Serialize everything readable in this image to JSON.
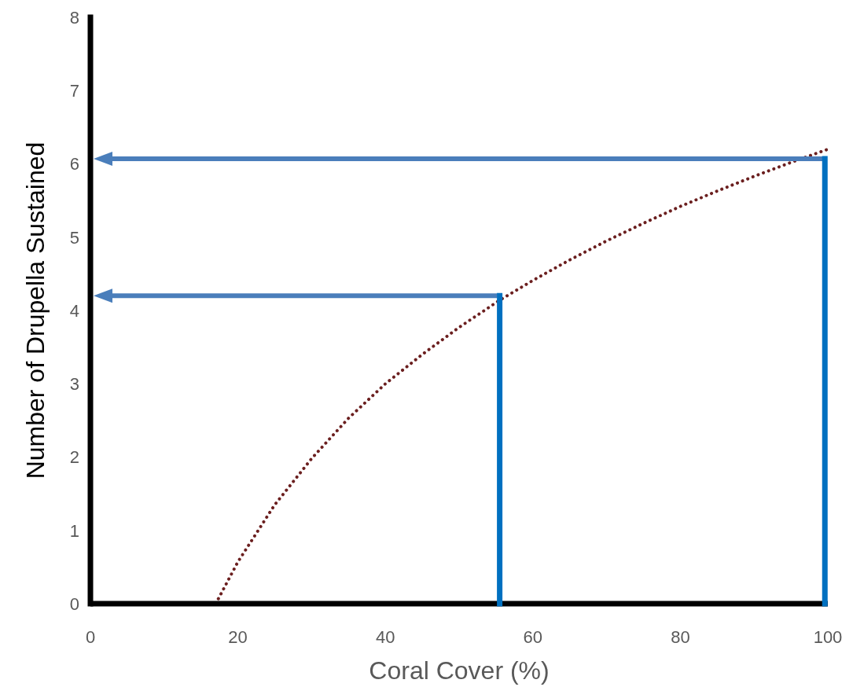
{
  "chart_data": {
    "type": "line",
    "xlabel": "Coral Cover (%)",
    "ylabel": "Number of Drupella Sustained",
    "xlim": [
      0,
      100
    ],
    "xticks": [
      0,
      20,
      40,
      60,
      80,
      100
    ],
    "ylim": [
      0,
      8
    ],
    "yticks": [
      0,
      1,
      2,
      3,
      4,
      5,
      6,
      7,
      8
    ],
    "grid": false,
    "marker": "none",
    "series": [
      {
        "color": "#6b1f1f",
        "line_style": "dotted",
        "x": [
          17,
          20,
          25,
          30,
          35,
          40,
          45,
          50,
          55.5,
          60,
          65,
          70,
          75,
          80,
          85,
          90,
          95,
          100
        ],
        "values": [
          0,
          0.57,
          1.35,
          1.98,
          2.53,
          3.0,
          3.4,
          3.77,
          4.14,
          4.41,
          4.69,
          4.95,
          5.19,
          5.42,
          5.63,
          5.83,
          6.02,
          6.2
        ]
      },
      {
        "color": "#0070c0",
        "line_style": "solid",
        "x": [
          55.5,
          55.5
        ],
        "values": [
          0,
          4.2
        ]
      },
      {
        "color": "#0070c0",
        "line_style": "solid",
        "x": [
          99.6,
          99.6
        ],
        "values": [
          0,
          6.07
        ]
      }
    ],
    "ref_lines": [
      {
        "axis": "y",
        "value": 4.2,
        "color": "#4a7ebb"
      },
      {
        "axis": "y",
        "value": 6.07,
        "color": "#4a7ebb"
      }
    ]
  }
}
